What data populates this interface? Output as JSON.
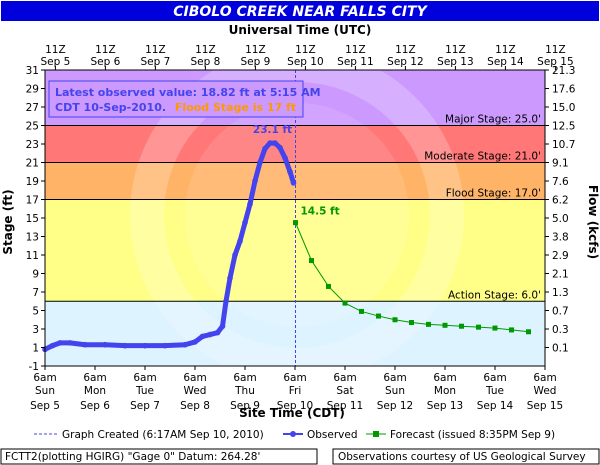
{
  "title": "CIBOLO CREEK NEAR FALLS CITY",
  "top_axis_title": "Universal Time (UTC)",
  "bottom_axis_title": "Site Time (CDT)",
  "left_axis_title": "Stage (ft)",
  "right_axis_title": "Flow (kcfs)",
  "colors": {
    "header_bg": "#0000dd",
    "major": "#cc99ff",
    "moderate": "#ff7777",
    "flood": "#ffb366",
    "action": "#ffff88",
    "normal": "#ddf3ff",
    "observed": "#4444ee",
    "forecast": "#009900",
    "info_text": "#4444ee",
    "info_flood": "#ff9900"
  },
  "info_box": {
    "line1": "Latest observed value: 18.82 ft at 5:15 AM",
    "line2a": "CDT 10-Sep-2010.",
    "line2b": "Flood Stage is 17 ft"
  },
  "stage_labels": {
    "major": "Major Stage: 25.0'",
    "moderate": "Moderate Stage: 21.0'",
    "flood": "Flood Stage: 17.0'",
    "action": "Action Stage: 6.0'"
  },
  "annotations": {
    "peak": "23.1 ft",
    "forecast_start": "14.5 ft"
  },
  "legend": {
    "graph_created": "Graph Created (6:17AM Sep 10, 2010)",
    "observed": "Observed",
    "forecast": "Forecast (issued 8:35PM Sep 9)"
  },
  "footer": {
    "left": "FCTT2(plotting HGIRG) \"Gage 0\" Datum: 264.28'",
    "right": "Observations courtesy of US Geological Survey"
  },
  "chart_data": {
    "type": "line",
    "x_unit": "days since Sep 5 06:00 CDT",
    "xlim": [
      0,
      10
    ],
    "ylim": [
      -1,
      31
    ],
    "left_ticks": [
      -1,
      1,
      3,
      5,
      7,
      9,
      11,
      13,
      15,
      17,
      19,
      21,
      23,
      25,
      27,
      29,
      31
    ],
    "right_ticks": [
      "0.1",
      "0.3",
      "0.7",
      "1.3",
      "2.1",
      "2.9",
      "3.8",
      "5.0",
      "6.2",
      "7.6",
      "9.1",
      "10.7",
      "12.5",
      "15.0",
      "17.6",
      "21.3"
    ],
    "right_tick_stages": [
      1,
      3,
      5,
      7,
      9,
      11,
      13,
      15,
      17,
      19,
      21,
      23,
      25,
      27,
      29,
      31
    ],
    "top_ticks": [
      {
        "time": "11Z",
        "date": "Sep 5"
      },
      {
        "time": "11Z",
        "date": "Sep 6"
      },
      {
        "time": "11Z",
        "date": "Sep 7"
      },
      {
        "time": "11Z",
        "date": "Sep 8"
      },
      {
        "time": "11Z",
        "date": "Sep 9"
      },
      {
        "time": "11Z",
        "date": "Sep 10"
      },
      {
        "time": "11Z",
        "date": "Sep 11"
      },
      {
        "time": "11Z",
        "date": "Sep 12"
      },
      {
        "time": "11Z",
        "date": "Sep 13"
      },
      {
        "time": "11Z",
        "date": "Sep 14"
      },
      {
        "time": "11Z",
        "date": "Sep 15"
      }
    ],
    "bottom_ticks": [
      {
        "time": "6am",
        "day": "Sun",
        "date": "Sep 5"
      },
      {
        "time": "6am",
        "day": "Mon",
        "date": "Sep 6"
      },
      {
        "time": "6am",
        "day": "Tue",
        "date": "Sep 7"
      },
      {
        "time": "6am",
        "day": "Wed",
        "date": "Sep 8"
      },
      {
        "time": "6am",
        "day": "Thu",
        "date": "Sep 9"
      },
      {
        "time": "6am",
        "day": "Fri",
        "date": "Sep 10"
      },
      {
        "time": "6am",
        "day": "Sat",
        "date": "Sep 11"
      },
      {
        "time": "6am",
        "day": "Sun",
        "date": "Sep 12"
      },
      {
        "time": "6am",
        "day": "Mon",
        "date": "Sep 13"
      },
      {
        "time": "6am",
        "day": "Tue",
        "date": "Sep 14"
      },
      {
        "time": "6am",
        "day": "Wed",
        "date": "Sep 15"
      }
    ],
    "thresholds": {
      "action": 6,
      "flood": 17,
      "moderate": 21,
      "major": 25
    },
    "graph_created_x": 5.01,
    "observed": {
      "name": "Observed",
      "x": [
        0,
        0.15,
        0.3,
        0.5,
        0.8,
        1.2,
        1.6,
        2.0,
        2.4,
        2.8,
        3.0,
        3.15,
        3.3,
        3.45,
        3.55,
        3.62,
        3.7,
        3.8,
        3.9,
        4.0,
        4.1,
        4.2,
        4.3,
        4.4,
        4.5,
        4.6,
        4.7,
        4.8,
        4.9,
        4.97
      ],
      "y": [
        0.8,
        1.2,
        1.5,
        1.5,
        1.3,
        1.3,
        1.2,
        1.2,
        1.2,
        1.3,
        1.6,
        2.2,
        2.4,
        2.6,
        3.3,
        6.0,
        8.5,
        11.0,
        12.5,
        14.5,
        16.5,
        19.0,
        21.0,
        22.5,
        23.1,
        23.1,
        22.6,
        21.5,
        20.0,
        18.8
      ]
    },
    "forecast": {
      "name": "Forecast (issued 8:35PM Sep 9)",
      "x": [
        5.01,
        5.33,
        5.67,
        6.0,
        6.33,
        6.67,
        7.0,
        7.33,
        7.67,
        8.0,
        8.33,
        8.67,
        9.0,
        9.33,
        9.67
      ],
      "y": [
        14.5,
        10.4,
        7.6,
        5.8,
        4.9,
        4.4,
        4.0,
        3.7,
        3.5,
        3.4,
        3.3,
        3.2,
        3.1,
        2.9,
        2.7
      ]
    }
  }
}
